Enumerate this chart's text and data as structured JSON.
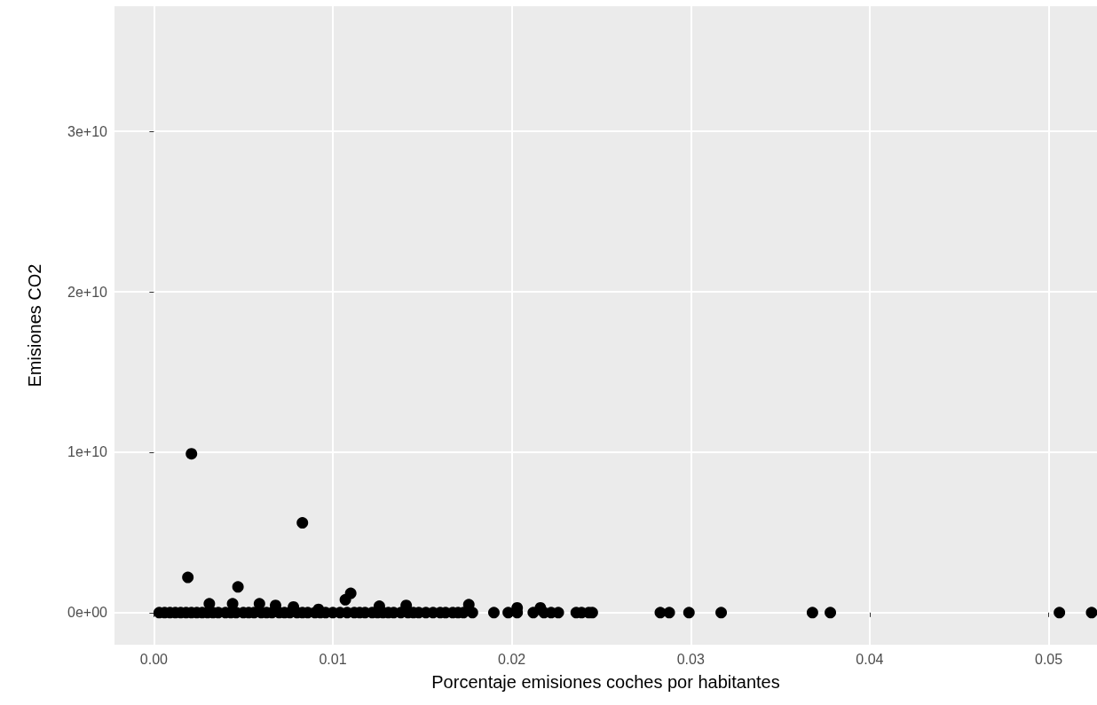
{
  "chart_data": {
    "type": "scatter",
    "xlabel": "Porcentaje emisiones coches por habitantes",
    "ylabel": "Emisiones CO2",
    "xlim": [
      -0.0022,
      0.0527
    ],
    "ylim": [
      -2000000000,
      37800000000
    ],
    "xticks": [
      {
        "value": 0,
        "label": "0.00"
      },
      {
        "value": 0.01,
        "label": "0.01"
      },
      {
        "value": 0.02,
        "label": "0.02"
      },
      {
        "value": 0.03,
        "label": "0.03"
      },
      {
        "value": 0.04,
        "label": "0.04"
      },
      {
        "value": 0.05,
        "label": "0.05"
      }
    ],
    "yticks": [
      {
        "value": 0,
        "label": "0e+00"
      },
      {
        "value": 10000000000,
        "label": "1e+10"
      },
      {
        "value": 20000000000,
        "label": "2e+10"
      },
      {
        "value": 30000000000,
        "label": "3e+10"
      }
    ],
    "grid": true,
    "marker": "circle",
    "color": "#000000",
    "x": [
      0.0021,
      0.0083,
      0.0019,
      0.0047,
      0.011,
      0.0107,
      0.0031,
      0.0044,
      0.0059,
      0.0068,
      0.0078,
      0.0092,
      0.0126,
      0.0141,
      0.0176,
      0.0203,
      0.0216,
      0.0003,
      0.0006,
      0.0009,
      0.0012,
      0.0015,
      0.0018,
      0.0021,
      0.0024,
      0.0027,
      0.003,
      0.0033,
      0.0036,
      0.004,
      0.0043,
      0.0046,
      0.005,
      0.0053,
      0.0056,
      0.006,
      0.0063,
      0.0066,
      0.007,
      0.0073,
      0.0076,
      0.008,
      0.0083,
      0.0086,
      0.009,
      0.0093,
      0.0096,
      0.01,
      0.0104,
      0.0108,
      0.0112,
      0.0115,
      0.0118,
      0.0122,
      0.0125,
      0.0128,
      0.0131,
      0.0134,
      0.0138,
      0.0142,
      0.0145,
      0.0148,
      0.0152,
      0.0156,
      0.016,
      0.0163,
      0.0167,
      0.017,
      0.0173,
      0.0178,
      0.019,
      0.0198,
      0.0203,
      0.0212,
      0.0218,
      0.0222,
      0.0226,
      0.0236,
      0.0239,
      0.0243,
      0.0245,
      0.0283,
      0.0288,
      0.0299,
      0.0317,
      0.0368,
      0.0378,
      0.0506,
      0.0524
    ],
    "values": [
      9900000000,
      5600000000,
      2200000000,
      1600000000,
      1200000000,
      800000000,
      550000000,
      550000000,
      550000000,
      450000000,
      350000000,
      200000000,
      400000000,
      450000000,
      500000000,
      300000000,
      300000000,
      0,
      0,
      0,
      0,
      0,
      0,
      0,
      0,
      0,
      0,
      0,
      0,
      0,
      0,
      0,
      0,
      0,
      0,
      0,
      0,
      0,
      0,
      0,
      0,
      0,
      0,
      0,
      0,
      0,
      0,
      0,
      0,
      0,
      0,
      0,
      0,
      0,
      0,
      0,
      0,
      0,
      0,
      0,
      0,
      0,
      0,
      0,
      0,
      0,
      0,
      0,
      0,
      0,
      0,
      0,
      0,
      0,
      0,
      0,
      0,
      0,
      0,
      0,
      0,
      0,
      0,
      0,
      0,
      0,
      0,
      0,
      0
    ]
  }
}
